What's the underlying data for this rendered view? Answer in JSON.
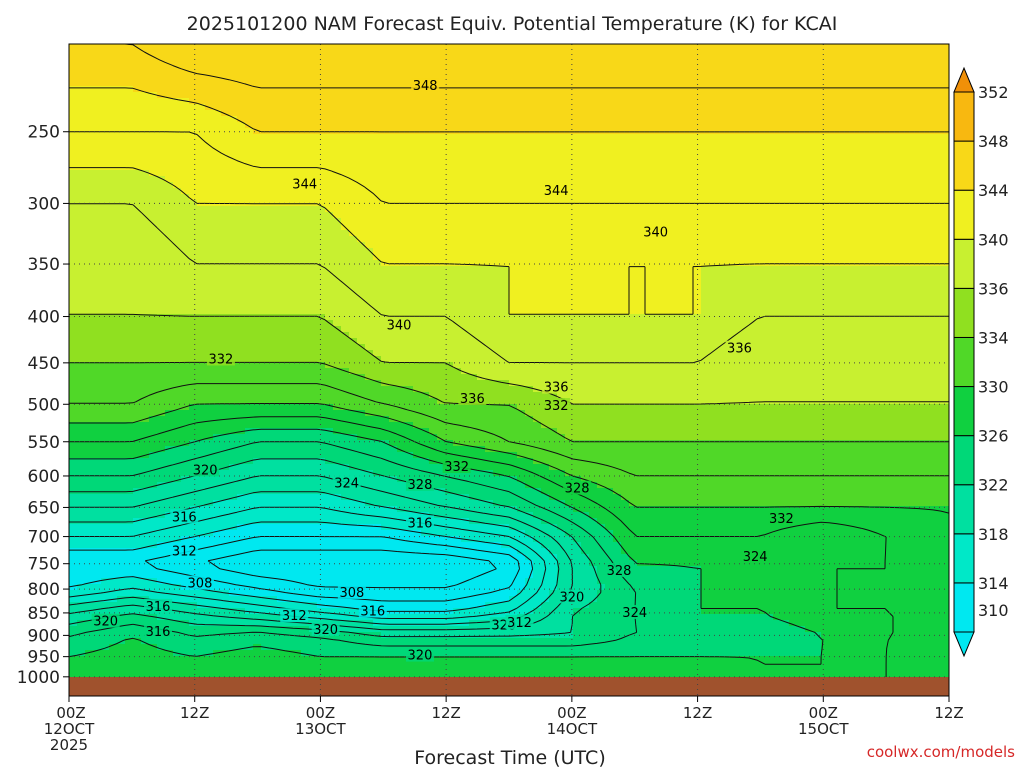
{
  "chart_data": {
    "type": "heatmap",
    "title": "2025101200 NAM Forecast Equiv. Potential Temperature (K) for KCAI",
    "xlabel": "Forecast Time (UTC)",
    "credit": "coolwx.com/models",
    "x_ticks": [
      {
        "hours": 0,
        "line1": "00Z",
        "line2": "12OCT",
        "line3": "2025"
      },
      {
        "hours": 12,
        "line1": "12Z",
        "line2": "",
        "line3": ""
      },
      {
        "hours": 24,
        "line1": "00Z",
        "line2": "13OCT",
        "line3": ""
      },
      {
        "hours": 36,
        "line1": "12Z",
        "line2": "",
        "line3": ""
      },
      {
        "hours": 48,
        "line1": "00Z",
        "line2": "14OCT",
        "line3": ""
      },
      {
        "hours": 60,
        "line1": "12Z",
        "line2": "",
        "line3": ""
      },
      {
        "hours": 72,
        "line1": "00Z",
        "line2": "15OCT",
        "line3": ""
      },
      {
        "hours": 84,
        "line1": "12Z",
        "line2": "",
        "line3": ""
      }
    ],
    "x_range_hours": [
      0,
      84
    ],
    "y_scale": "log-pressure (hPa), decreasing upward",
    "y_range_hpa": [
      1050,
      200
    ],
    "y_ticks": [
      250,
      300,
      350,
      400,
      450,
      500,
      550,
      600,
      650,
      700,
      750,
      800,
      850,
      900,
      950,
      1000
    ],
    "grid": true,
    "colorbar": {
      "placement": "right",
      "levels": [
        310,
        314,
        318,
        322,
        326,
        330,
        334,
        336,
        340,
        344,
        348,
        352
      ],
      "colors": [
        "#00e8f0",
        "#00e8c8",
        "#00e0a0",
        "#00d878",
        "#10d040",
        "#50d828",
        "#90e020",
        "#c8f030",
        "#f0f020",
        "#f8d818",
        "#f8b810",
        "#f09008"
      ]
    },
    "surface_below_hpa": 1005,
    "surface_color": "#a0522d",
    "field_hours": [
      0,
      6,
      12,
      18,
      24,
      30,
      36,
      42,
      48,
      54,
      60,
      66,
      72,
      78,
      84
    ],
    "field_pressure_levels": [
      1000,
      950,
      900,
      850,
      800,
      750,
      700,
      650,
      600,
      550,
      500,
      450,
      400,
      350,
      300,
      250,
      200
    ],
    "field_theta_e": [
      [
        328,
        328,
        328,
        328,
        328,
        328,
        328,
        328,
        328,
        328,
        328,
        326,
        326,
        328,
        330
      ],
      [
        326,
        327,
        326,
        327,
        326,
        326,
        326,
        326,
        326,
        326,
        326,
        326,
        326,
        328,
        330
      ],
      [
        324,
        326,
        324,
        325,
        324,
        322,
        322,
        322,
        322,
        324,
        324,
        324,
        326,
        328,
        328
      ],
      [
        320,
        322,
        320,
        318,
        316,
        314,
        314,
        316,
        322,
        324,
        326,
        326,
        328,
        328,
        328
      ],
      [
        314,
        316,
        314,
        312,
        310,
        310,
        310,
        312,
        320,
        324,
        326,
        326,
        328,
        328,
        328
      ],
      [
        312,
        312,
        310,
        308,
        308,
        308,
        308,
        310,
        320,
        326,
        326,
        326,
        328,
        328,
        330
      ],
      [
        316,
        316,
        314,
        312,
        312,
        312,
        314,
        316,
        322,
        328,
        328,
        328,
        326,
        328,
        330
      ],
      [
        320,
        320,
        318,
        316,
        316,
        318,
        320,
        322,
        326,
        330,
        330,
        330,
        330,
        330,
        330
      ],
      [
        324,
        324,
        322,
        320,
        320,
        322,
        324,
        326,
        330,
        332,
        332,
        332,
        332,
        332,
        332
      ],
      [
        328,
        328,
        326,
        324,
        324,
        326,
        330,
        332,
        334,
        334,
        334,
        334,
        334,
        334,
        334
      ],
      [
        332,
        332,
        330,
        330,
        330,
        332,
        334,
        334,
        336,
        336,
        336,
        336,
        336,
        336,
        336
      ],
      [
        334,
        334,
        334,
        334,
        334,
        336,
        336,
        338,
        338,
        338,
        338,
        336,
        336,
        336,
        336
      ],
      [
        336,
        336,
        336,
        336,
        336,
        338,
        338,
        340,
        340,
        340,
        340,
        338,
        338,
        338,
        338
      ],
      [
        336,
        336,
        338,
        338,
        338,
        340,
        340,
        340,
        340,
        340,
        340,
        340,
        340,
        340,
        340
      ],
      [
        338,
        338,
        340,
        340,
        340,
        342,
        342,
        342,
        342,
        342,
        342,
        342,
        342,
        342,
        342
      ],
      [
        342,
        342,
        342,
        344,
        344,
        344,
        344,
        344,
        344,
        344,
        344,
        344,
        344,
        344,
        344
      ],
      [
        346,
        346,
        348,
        348,
        348,
        348,
        348,
        348,
        348,
        348,
        348,
        348,
        348,
        348,
        348
      ]
    ],
    "contour_labels": [
      {
        "text": "348",
        "hour": 34.0,
        "hpa": 222
      },
      {
        "text": "344",
        "hour": 22.5,
        "hpa": 285
      },
      {
        "text": "344",
        "hour": 46.5,
        "hpa": 290
      },
      {
        "text": "340",
        "hour": 56.0,
        "hpa": 322
      },
      {
        "text": "340",
        "hour": 31.5,
        "hpa": 408
      },
      {
        "text": "336",
        "hour": 64.0,
        "hpa": 433
      },
      {
        "text": "336",
        "hour": 38.5,
        "hpa": 492
      },
      {
        "text": "336",
        "hour": 46.5,
        "hpa": 478
      },
      {
        "text": "332",
        "hour": 14.5,
        "hpa": 445
      },
      {
        "text": "332",
        "hour": 46.5,
        "hpa": 501
      },
      {
        "text": "332",
        "hour": 37.0,
        "hpa": 585
      },
      {
        "text": "332",
        "hour": 68.0,
        "hpa": 668
      },
      {
        "text": "328",
        "hour": 33.5,
        "hpa": 612
      },
      {
        "text": "328",
        "hour": 48.5,
        "hpa": 618
      },
      {
        "text": "328",
        "hour": 52.5,
        "hpa": 762
      },
      {
        "text": "324",
        "hour": 26.5,
        "hpa": 610
      },
      {
        "text": "324",
        "hour": 65.5,
        "hpa": 735
      },
      {
        "text": "324",
        "hour": 54.0,
        "hpa": 848
      },
      {
        "text": "320",
        "hour": 13.0,
        "hpa": 590
      },
      {
        "text": "320",
        "hour": 3.5,
        "hpa": 867
      },
      {
        "text": "320",
        "hour": 24.5,
        "hpa": 885
      },
      {
        "text": "320",
        "hour": 33.5,
        "hpa": 945
      },
      {
        "text": "320",
        "hour": 41.5,
        "hpa": 875
      },
      {
        "text": "320",
        "hour": 48.0,
        "hpa": 815
      },
      {
        "text": "316",
        "hour": 11.0,
        "hpa": 665
      },
      {
        "text": "316",
        "hour": 33.5,
        "hpa": 675
      },
      {
        "text": "316",
        "hour": 8.5,
        "hpa": 835
      },
      {
        "text": "316",
        "hour": 8.5,
        "hpa": 890
      },
      {
        "text": "316",
        "hour": 29.0,
        "hpa": 845
      },
      {
        "text": "312",
        "hour": 11.0,
        "hpa": 725
      },
      {
        "text": "312",
        "hour": 21.5,
        "hpa": 855
      },
      {
        "text": "312",
        "hour": 43.0,
        "hpa": 870
      },
      {
        "text": "308",
        "hour": 12.5,
        "hpa": 787
      },
      {
        "text": "308",
        "hour": 27.0,
        "hpa": 806
      }
    ]
  }
}
